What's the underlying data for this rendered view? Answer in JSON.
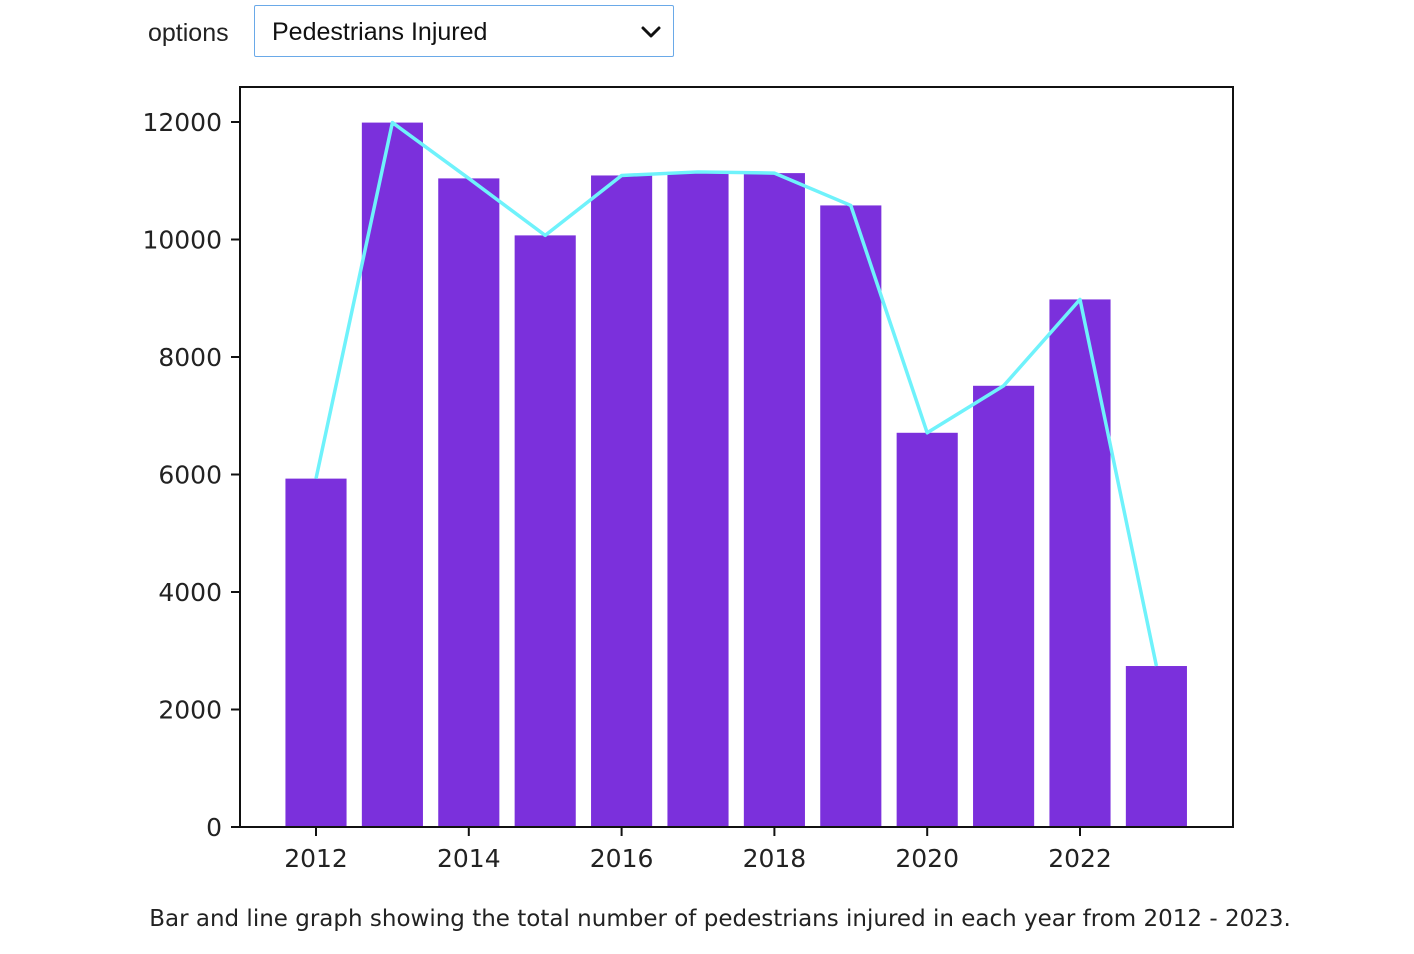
{
  "controls": {
    "label": "options",
    "selected": "Pedestrians Injured",
    "icon": "chevron-down-icon"
  },
  "caption": "Bar and line graph showing the total number of pedestrians injured in each year from 2012 - 2023.",
  "colors": {
    "bar": "#7b30dc",
    "line": "#6ff2fb",
    "axis": "#111111",
    "select_border": "#6aa9e8"
  },
  "chart_data": {
    "type": "bar",
    "x": [
      2012,
      2013,
      2014,
      2015,
      2016,
      2017,
      2018,
      2019,
      2020,
      2021,
      2022,
      2023
    ],
    "series": [
      {
        "type": "bar",
        "values": [
          5930,
          11990,
          11040,
          10070,
          11090,
          11150,
          11130,
          10580,
          6710,
          7510,
          8980,
          2740
        ]
      },
      {
        "type": "line",
        "values": [
          5930,
          11990,
          11040,
          10070,
          11090,
          11150,
          11130,
          10580,
          6710,
          7510,
          8980,
          2740
        ]
      }
    ],
    "xticks": [
      "2012",
      "2014",
      "2016",
      "2018",
      "2020",
      "2022"
    ],
    "yticks": [
      "0",
      "2000",
      "4000",
      "6000",
      "8000",
      "10000",
      "12000"
    ],
    "title": "",
    "xlabel": "",
    "ylabel": "",
    "ylim": [
      0,
      12600
    ],
    "xlim": [
      2011.1,
      2024.0
    ],
    "grid": false
  }
}
